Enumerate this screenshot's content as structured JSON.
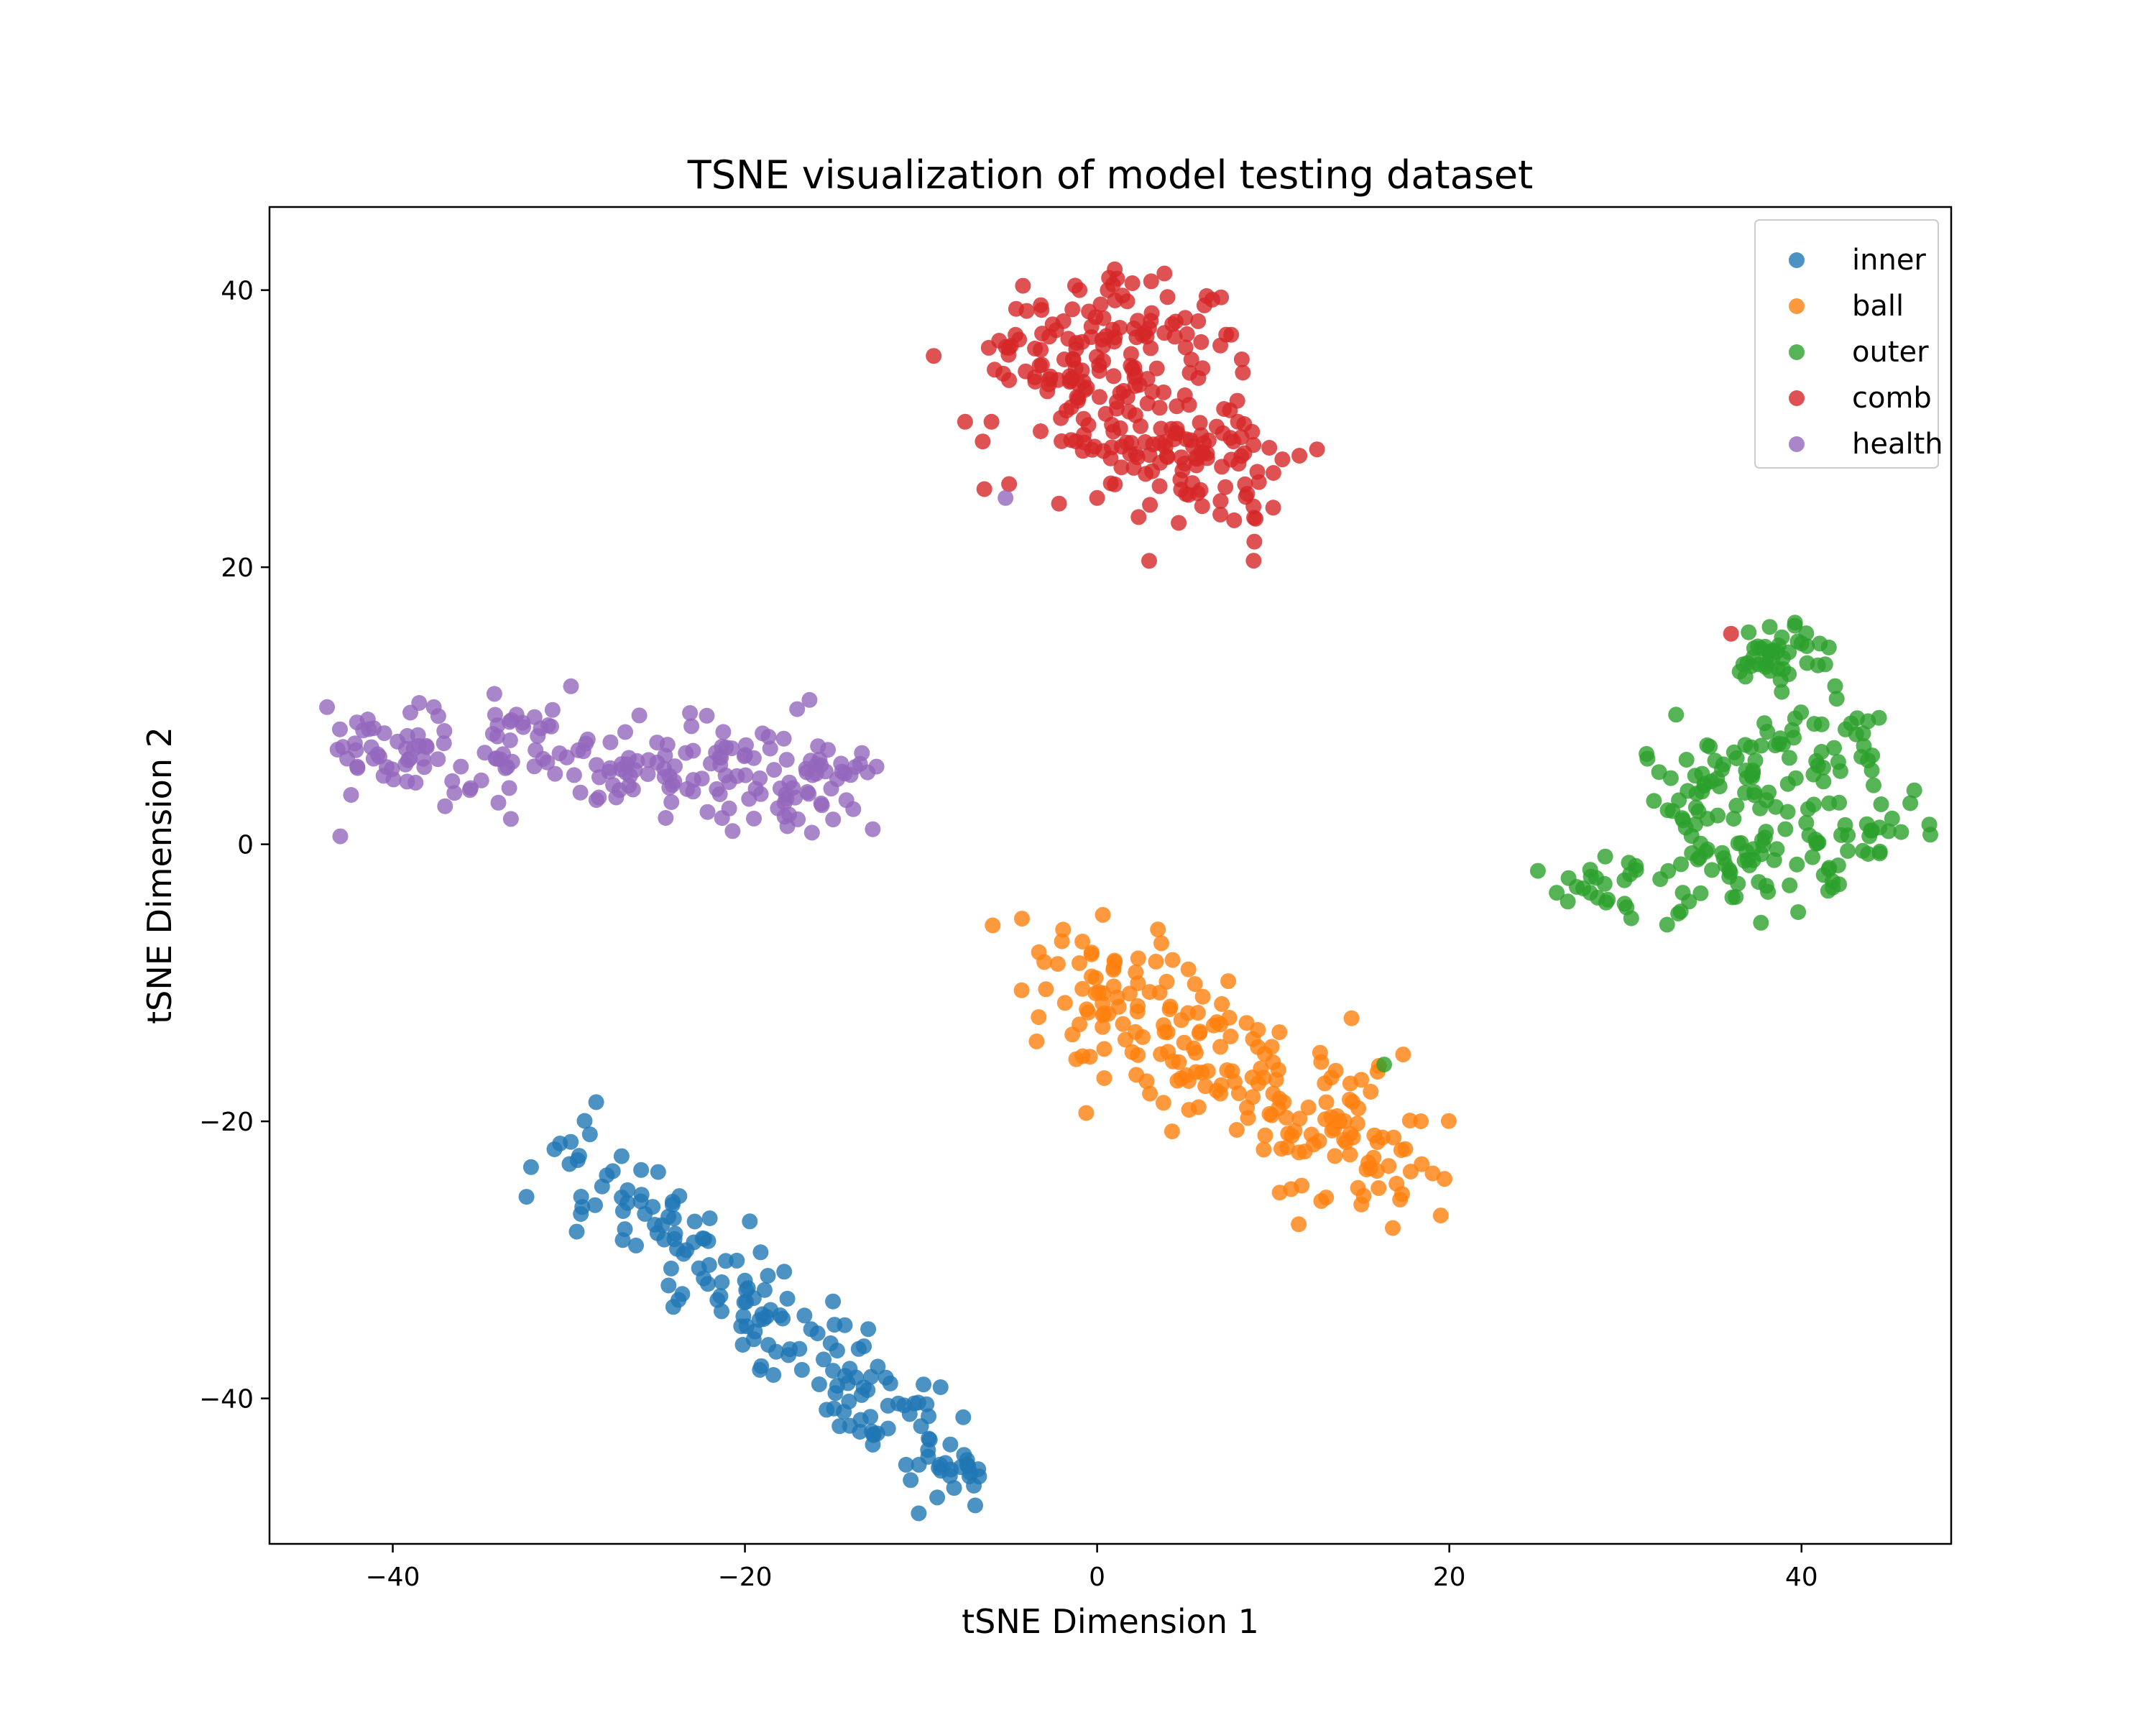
{
  "chart_data": {
    "type": "scatter",
    "title": "TSNE visualization of model testing dataset",
    "xlabel": "tSNE Dimension 1",
    "ylabel": "tSNE Dimension 2",
    "xlim": [
      -47,
      48.5
    ],
    "ylim": [
      -50.5,
      46
    ],
    "xticks": [
      -40,
      -20,
      0,
      20,
      40
    ],
    "yticks": [
      -40,
      -20,
      0,
      20,
      40
    ],
    "grid": false,
    "legend_position": "top-right",
    "series": [
      {
        "name": "inner",
        "color": "#1f77b4",
        "clusters": [
          {
            "from": [
              -30.5,
              -21.5
            ],
            "to": [
              -7,
              -46.5
            ],
            "count": 170,
            "spread": 1.6
          }
        ],
        "points": [
          [
            -30.5,
            -21.6
          ],
          [
            -29.5,
            -22.8
          ],
          [
            -27,
            -25.5
          ],
          [
            -24,
            -28.5
          ],
          [
            -22,
            -27
          ],
          [
            -20,
            -31.5
          ],
          [
            -18,
            -34
          ],
          [
            -15,
            -33
          ],
          [
            -13,
            -35
          ],
          [
            -15,
            -38
          ],
          [
            -12,
            -38.5
          ],
          [
            -10,
            -42
          ],
          [
            -9,
            -45
          ],
          [
            -7,
            -46.3
          ]
        ]
      },
      {
        "name": "ball",
        "color": "#ff7f0e",
        "clusters": [
          {
            "from": [
              -2,
              -8
            ],
            "to": [
              17,
              -24
            ],
            "count": 200,
            "spread": 2.3
          }
        ],
        "points": [
          [
            -2,
            -7
          ],
          [
            -3,
            -8.5
          ],
          [
            1,
            -8.5
          ],
          [
            -1,
            -13
          ],
          [
            2,
            -15
          ],
          [
            6,
            -11
          ],
          [
            7,
            -13
          ],
          [
            3,
            -18
          ],
          [
            7,
            -18
          ],
          [
            10,
            -18
          ],
          [
            12,
            -19
          ],
          [
            13,
            -25.5
          ],
          [
            15,
            -26
          ],
          [
            17,
            -24.5
          ],
          [
            17.5,
            -22
          ],
          [
            15,
            -17
          ],
          [
            16,
            -16
          ]
        ]
      },
      {
        "name": "outer",
        "color": "#2ca02c",
        "clusters": [
          {
            "from": [
              28,
              -4
            ],
            "to": [
              44,
              1
            ],
            "count": 110,
            "spread": 1.8
          },
          {
            "from": [
              32,
              4
            ],
            "to": [
              43,
              8
            ],
            "count": 90,
            "spread": 2.0
          },
          {
            "from": [
              37,
              13
            ],
            "to": [
              40,
              14
            ],
            "count": 40,
            "spread": 1.0
          }
        ],
        "points": [
          [
            16.3,
            -15.9
          ],
          [
            37,
            15.3
          ],
          [
            40,
            14.5
          ],
          [
            28,
            -3.5
          ],
          [
            29,
            -4
          ],
          [
            33,
            -5
          ],
          [
            43.5,
            8
          ],
          [
            44,
            1
          ],
          [
            42,
            10.5
          ]
        ]
      },
      {
        "name": "comb",
        "color": "#d62728",
        "clusters": [
          {
            "from": [
              -4,
              34
            ],
            "to": [
              4,
              37
            ],
            "count": 130,
            "spread": 2.6
          },
          {
            "from": [
              0,
              30
            ],
            "to": [
              9,
              26
            ],
            "count": 120,
            "spread": 2.4
          }
        ],
        "points": [
          [
            -7.5,
            30.5
          ],
          [
            -6,
            30.5
          ],
          [
            -5,
            33.5
          ],
          [
            -5,
            26
          ],
          [
            -4,
            38.5
          ],
          [
            -1,
            40
          ],
          [
            1,
            41.5
          ],
          [
            2,
            40.5
          ],
          [
            4,
            39.5
          ],
          [
            5,
            38
          ],
          [
            7,
            36
          ],
          [
            8,
            30.5
          ],
          [
            10,
            24.3
          ],
          [
            9,
            23.5
          ],
          [
            7,
            23.8
          ],
          [
            3,
            24.5
          ],
          [
            0,
            25
          ],
          [
            36,
            15.2
          ]
        ]
      },
      {
        "name": "health",
        "color": "#9467bd",
        "clusters": [
          {
            "from": [
              -42,
              7
            ],
            "to": [
              -14,
              4.5
            ],
            "count": 210,
            "spread": 1.7
          }
        ],
        "points": [
          [
            -43,
            8.3
          ],
          [
            -42,
            5.5
          ],
          [
            -39,
            9.5
          ],
          [
            -38.5,
            10.2
          ],
          [
            -34,
            3
          ],
          [
            -31,
            8.5
          ],
          [
            -26,
            9.3
          ],
          [
            -24.5,
            1.9
          ],
          [
            -19,
            8
          ],
          [
            -17,
            1.8
          ],
          [
            -14,
            5
          ],
          [
            -5.2,
            25
          ]
        ]
      }
    ]
  }
}
